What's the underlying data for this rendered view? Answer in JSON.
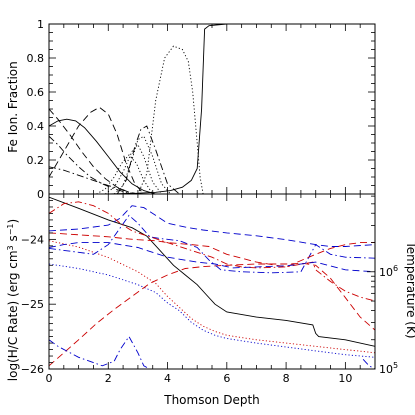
{
  "chart_data": [
    {
      "type": "line",
      "ylabel": "Fe Ion. Fraction",
      "xlim": [
        0,
        11
      ],
      "ylim": [
        0,
        1
      ],
      "x_ticks": [
        0,
        2,
        4,
        6,
        8,
        10
      ],
      "y_ticks": [
        0,
        0.2,
        0.4,
        0.6,
        0.8,
        1
      ],
      "y_tick_labels": [
        "0",
        "0.2",
        "0.4",
        "0.6",
        "0.8",
        "1"
      ],
      "grid": false,
      "series": [
        {
          "style": "solid",
          "color": "#000000",
          "x": [
            0,
            0.3,
            0.6,
            0.9,
            1.2,
            1.6,
            2.0,
            2.4,
            2.8,
            3.2,
            3.6
          ],
          "y": [
            0.4,
            0.43,
            0.44,
            0.43,
            0.39,
            0.31,
            0.22,
            0.13,
            0.06,
            0.02,
            0.0
          ]
        },
        {
          "style": "dashed",
          "color": "#000000",
          "x": [
            0,
            0.5,
            1.0,
            1.4,
            1.7,
            2.0,
            2.3,
            2.6,
            2.9,
            3.2
          ],
          "y": [
            0.1,
            0.25,
            0.4,
            0.48,
            0.51,
            0.47,
            0.35,
            0.18,
            0.06,
            0.0
          ]
        },
        {
          "style": "dashed",
          "color": "#000000",
          "x": [
            0,
            0.3,
            0.7,
            1.1,
            1.5,
            1.9,
            2.3,
            2.7,
            3.0
          ],
          "y": [
            0.5,
            0.44,
            0.35,
            0.25,
            0.16,
            0.09,
            0.04,
            0.01,
            0.0
          ]
        },
        {
          "style": "dashdot",
          "color": "#000000",
          "x": [
            0,
            0.3,
            0.6,
            1.0,
            1.4,
            1.8,
            2.2,
            2.6,
            3.0
          ],
          "y": [
            0.34,
            0.29,
            0.23,
            0.16,
            0.1,
            0.06,
            0.03,
            0.01,
            0.0
          ]
        },
        {
          "style": "dashdot",
          "color": "#000000",
          "x": [
            0,
            0.5,
            1.0,
            1.5,
            2.0,
            2.4,
            2.7,
            3.0
          ],
          "y": [
            0.16,
            0.14,
            0.11,
            0.08,
            0.05,
            0.03,
            0.01,
            0.0
          ]
        },
        {
          "style": "dotted",
          "color": "#000000",
          "x": [
            1.6,
            1.9,
            2.2,
            2.45,
            2.7,
            2.95,
            3.2,
            3.5
          ],
          "y": [
            0.0,
            0.03,
            0.1,
            0.18,
            0.23,
            0.18,
            0.08,
            0.0
          ]
        },
        {
          "style": "dotted",
          "color": "#000000",
          "x": [
            1.9,
            2.2,
            2.5,
            2.8,
            3.0,
            3.2,
            3.5,
            3.8
          ],
          "y": [
            0.0,
            0.04,
            0.13,
            0.25,
            0.29,
            0.22,
            0.07,
            0.0
          ]
        },
        {
          "style": "dotted",
          "color": "#000000",
          "x": [
            2.2,
            2.5,
            2.8,
            3.0,
            3.2,
            3.5,
            3.8,
            4.1
          ],
          "y": [
            0.0,
            0.05,
            0.2,
            0.32,
            0.34,
            0.22,
            0.06,
            0.0
          ]
        },
        {
          "style": "dashdot",
          "color": "#000000",
          "x": [
            2.3,
            2.6,
            2.9,
            3.1,
            3.3,
            3.6,
            4.0,
            4.4
          ],
          "y": [
            0.0,
            0.08,
            0.28,
            0.38,
            0.4,
            0.26,
            0.06,
            0.0
          ]
        },
        {
          "style": "dotted",
          "color": "#000000",
          "x": [
            3.0,
            3.3,
            3.6,
            3.9,
            4.2,
            4.5,
            4.7,
            4.85,
            5.0,
            5.1,
            5.2
          ],
          "y": [
            0.0,
            0.12,
            0.55,
            0.8,
            0.87,
            0.85,
            0.78,
            0.6,
            0.3,
            0.1,
            0.0
          ]
        },
        {
          "style": "solid",
          "color": "#000000",
          "x": [
            0,
            2.0,
            3.0,
            3.6,
            4.1,
            4.5,
            4.8,
            5.0,
            5.15,
            5.25,
            5.4,
            6.0,
            8.0,
            11.0
          ],
          "y": [
            0.0,
            0.0,
            0.005,
            0.01,
            0.02,
            0.04,
            0.08,
            0.15,
            0.5,
            0.97,
            0.99,
            1.0,
            1.0,
            1.0
          ]
        }
      ]
    },
    {
      "type": "line",
      "xlabel": "Thomson Depth",
      "ylabel": "log(H/C Rate) (erg cm³ s⁻¹)",
      "ylabel_right": "Temperature (K)",
      "xlim": [
        0,
        11
      ],
      "ylim": [
        -26,
        -23.3
      ],
      "x_ticks": [
        0,
        2,
        4,
        6,
        8,
        10
      ],
      "y_ticks": [
        -26,
        -25,
        -24
      ],
      "y_tick_labels": [
        "−26",
        "−25",
        "−24"
      ],
      "right_ticks_labeled": [
        {
          "value": 5,
          "label": "10",
          "exp": "5"
        },
        {
          "value": 6,
          "label": "10",
          "exp": "6"
        }
      ],
      "right_log_range": [
        5,
        6.8
      ],
      "grid": false,
      "series": [
        {
          "style": "solid",
          "color": "#000000",
          "axis": "left",
          "x": [
            0,
            1.0,
            2.0,
            2.8,
            3.3,
            3.7,
            4.2,
            4.6,
            5.0,
            5.3,
            5.6,
            6.0,
            7.0,
            8.0,
            8.9,
            9.0,
            9.1,
            10.0,
            11.0
          ],
          "y": [
            -23.35,
            -23.52,
            -23.7,
            -23.82,
            -23.95,
            -24.15,
            -24.4,
            -24.55,
            -24.7,
            -24.85,
            -25.0,
            -25.12,
            -25.2,
            -25.25,
            -25.32,
            -25.45,
            -25.5,
            -25.55,
            -25.65
          ]
        },
        {
          "style": "dotted",
          "color": "#cc0000",
          "axis": "left",
          "x": [
            0,
            1.0,
            2.0,
            3.0,
            3.6,
            4.0,
            4.4,
            4.8,
            5.2,
            5.6,
            6.0,
            7.0,
            8.0,
            9.0,
            10.0,
            11.0
          ],
          "y": [
            -24.02,
            -24.12,
            -24.28,
            -24.5,
            -24.68,
            -24.88,
            -25.05,
            -25.22,
            -25.34,
            -25.42,
            -25.48,
            -25.55,
            -25.6,
            -25.65,
            -25.7,
            -25.75
          ]
        },
        {
          "style": "dotted",
          "color": "#0000cc",
          "axis": "left",
          "x": [
            0,
            1.0,
            2.0,
            3.0,
            3.6,
            4.0,
            4.4,
            4.8,
            5.2,
            5.6,
            6.0,
            7.0,
            8.0,
            9.0,
            10.0,
            11.0
          ],
          "y": [
            -24.38,
            -24.45,
            -24.55,
            -24.7,
            -24.82,
            -24.98,
            -25.1,
            -25.28,
            -25.4,
            -25.48,
            -25.53,
            -25.6,
            -25.66,
            -25.72,
            -25.78,
            -25.82
          ]
        },
        {
          "style": "dashed",
          "color": "#cc0000",
          "axis": "left",
          "x": [
            0,
            0.5,
            1.0,
            1.6,
            2.2,
            2.8,
            3.4,
            4.0,
            4.6,
            5.2,
            6.0,
            7.0,
            8.0,
            8.6,
            9.0,
            9.5,
            10.0,
            10.5,
            11.0
          ],
          "y": [
            -25.95,
            -25.75,
            -25.55,
            -25.3,
            -25.08,
            -24.88,
            -24.68,
            -24.55,
            -24.45,
            -24.42,
            -24.4,
            -24.38,
            -24.38,
            -24.37,
            -24.4,
            -24.6,
            -24.9,
            -25.2,
            -25.4
          ]
        },
        {
          "style": "dashdot",
          "color": "#0000cc",
          "axis": "left",
          "x": [
            0,
            0.3,
            1.0,
            1.8,
            2.2,
            2.4,
            2.7,
            3.0,
            3.2,
            3.4,
            3.8,
            4.5,
            5.0
          ],
          "y": [
            -25.55,
            -25.65,
            -25.82,
            -25.95,
            -25.88,
            -25.7,
            -25.5,
            -25.75,
            -25.95,
            -26.0,
            -26.0,
            -26.0,
            -26.0
          ]
        },
        {
          "style": "dashdot",
          "color": "#0000cc",
          "axis": "left",
          "x": [
            10.6,
            10.8,
            11.0
          ],
          "y": [
            -25.85,
            -25.95,
            -26.0
          ]
        },
        {
          "style": "dashed",
          "color": "#0000cc",
          "axis": "right",
          "x": [
            0,
            1.0,
            2.0,
            2.4,
            2.8,
            3.2,
            3.6,
            4.0,
            4.6,
            5.2,
            6.0,
            7.0,
            8.0,
            9.0,
            9.5,
            10.0,
            11.0
          ],
          "y": [
            6.42,
            6.44,
            6.48,
            6.55,
            6.68,
            6.66,
            6.58,
            6.5,
            6.46,
            6.43,
            6.4,
            6.37,
            6.33,
            6.28,
            6.26,
            6.26,
            6.28
          ]
        },
        {
          "style": "dashdot",
          "color": "#0000cc",
          "axis": "right",
          "x": [
            0,
            0.5,
            1.0,
            1.5,
            2.0,
            2.4,
            2.7,
            3.0,
            3.4,
            3.8,
            4.4,
            5.0,
            5.4,
            5.8,
            6.5,
            7.5,
            8.5,
            9.0,
            9.5,
            10.0,
            11.0
          ],
          "y": [
            6.24,
            6.22,
            6.2,
            6.18,
            6.28,
            6.45,
            6.58,
            6.5,
            6.36,
            6.34,
            6.32,
            6.25,
            6.12,
            6.02,
            6.0,
            5.99,
            6.0,
            6.28,
            6.18,
            6.15,
            6.14
          ]
        },
        {
          "style": "dashdot",
          "color": "#cc0000",
          "axis": "right",
          "x": [
            0,
            0.5,
            1.0,
            1.5,
            2.0,
            2.4,
            2.8,
            3.2,
            3.6,
            4.2,
            5.0,
            5.5,
            6.0,
            6.5,
            7.0,
            8.0,
            8.9,
            9.0,
            9.5,
            10.0,
            10.5,
            11.0
          ],
          "y": [
            6.6,
            6.7,
            6.72,
            6.68,
            6.6,
            6.5,
            6.42,
            6.38,
            6.34,
            6.28,
            6.2,
            6.15,
            6.08,
            6.05,
            6.04,
            6.05,
            6.1,
            6.02,
            5.9,
            5.8,
            5.74,
            5.7
          ]
        },
        {
          "style": "dashed",
          "color": "#cc0000",
          "axis": "right",
          "x": [
            0,
            1.0,
            2.0,
            2.6,
            3.0,
            3.6,
            4.0,
            4.8,
            5.4,
            6.0,
            7.0,
            8.0,
            9.0,
            9.5,
            10.0,
            10.5,
            11.0
          ],
          "y": [
            6.4,
            6.38,
            6.36,
            6.34,
            6.33,
            6.32,
            6.3,
            6.28,
            6.26,
            6.18,
            6.1,
            6.05,
            6.18,
            6.24,
            6.28,
            6.3,
            6.3
          ]
        },
        {
          "style": "dashed",
          "color": "#0000cc",
          "axis": "right",
          "x": [
            0,
            0.5,
            1.0,
            2.0,
            3.0,
            4.0,
            5.0,
            5.6,
            6.2,
            7.0,
            8.0,
            9.0,
            9.5,
            10.0,
            11.0
          ],
          "y": [
            6.25,
            6.28,
            6.3,
            6.3,
            6.25,
            6.15,
            6.1,
            6.08,
            6.04,
            6.05,
            6.06,
            6.1,
            6.06,
            6.02,
            6.0
          ]
        }
      ]
    }
  ]
}
